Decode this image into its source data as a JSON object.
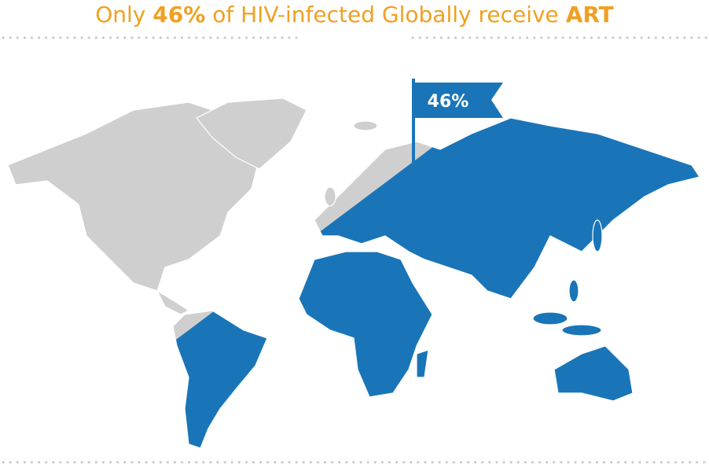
{
  "header": {
    "title_parts": [
      "Only ",
      "46%",
      " of HIV-infected Globally receive ",
      "ART"
    ]
  },
  "map": {
    "flag_label": "46%"
  }
}
